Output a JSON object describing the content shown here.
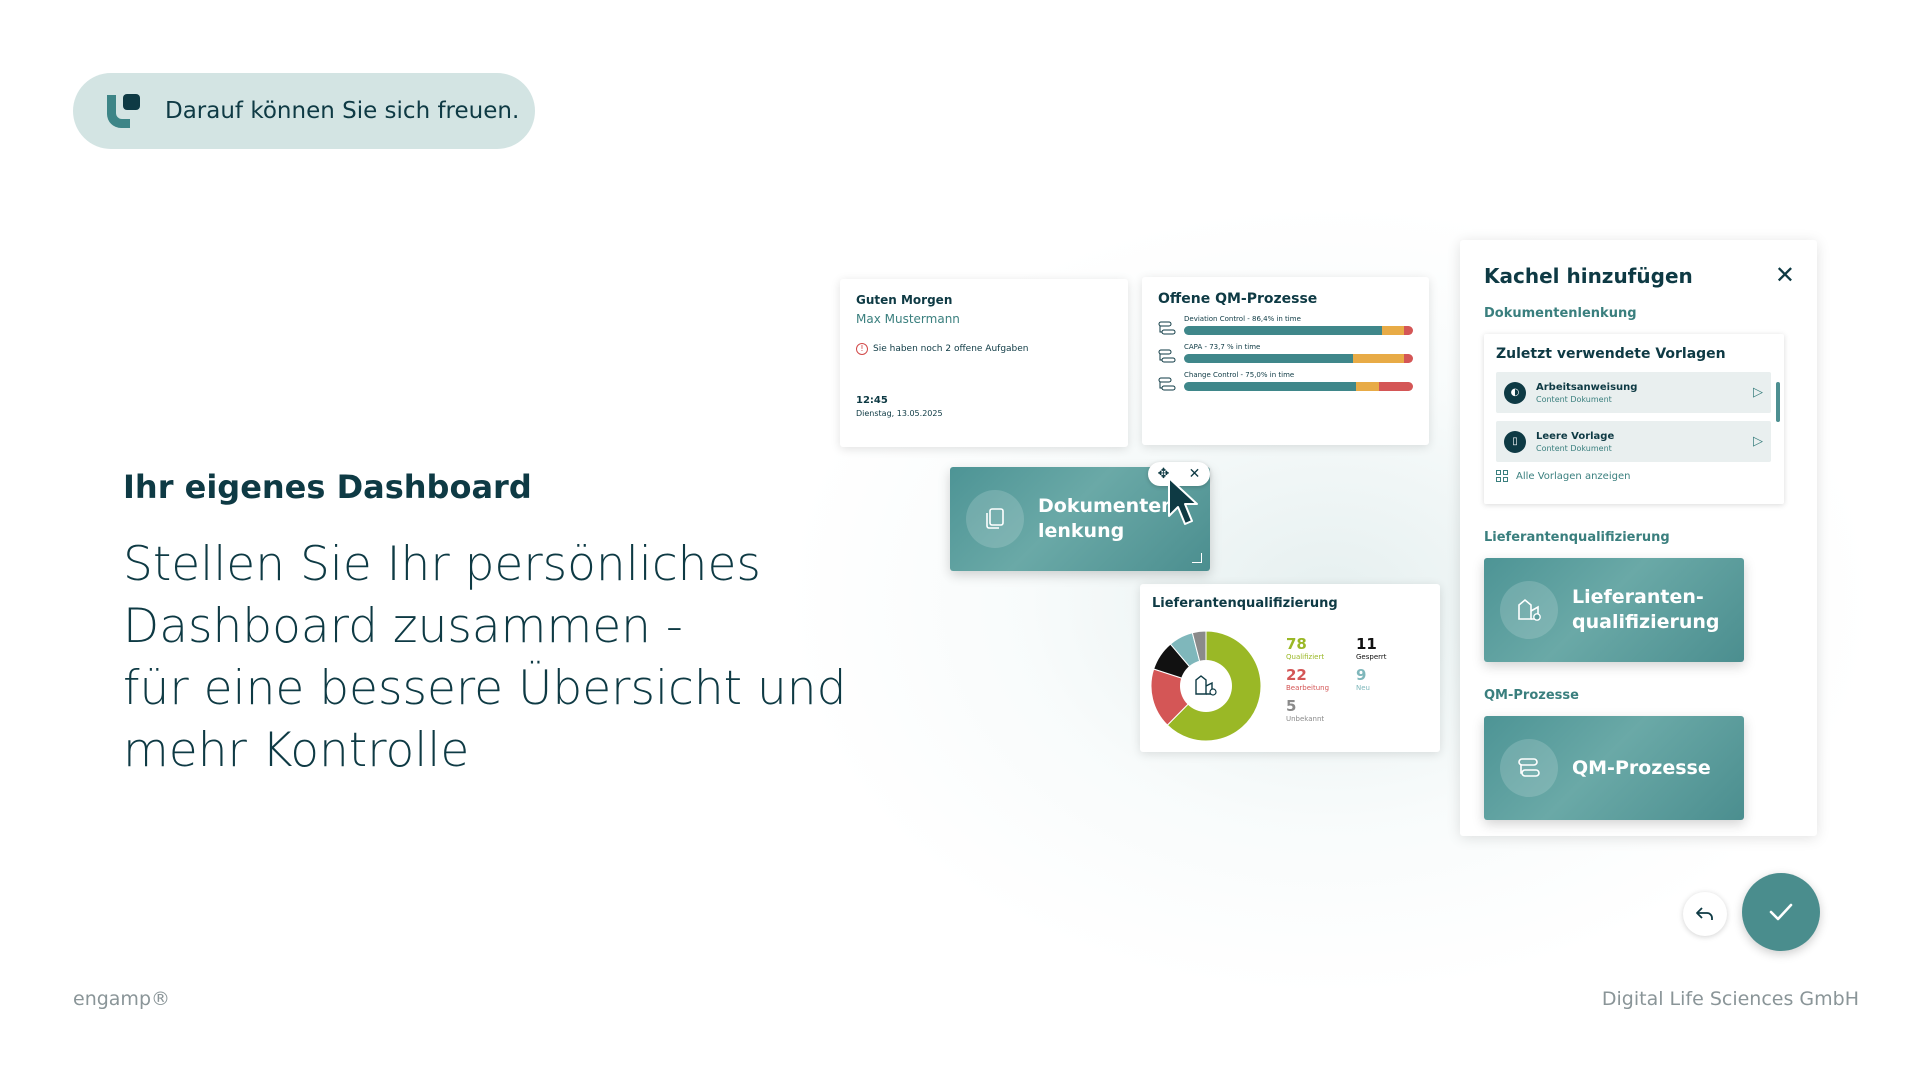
{
  "badge": {
    "text": "Darauf können Sie sich freuen.",
    "icon": "engamp-logo-icon"
  },
  "intro": {
    "subtitle": "Ihr eigenes Dashboard",
    "headline_lines": [
      "Stellen Sie Ihr persönliches",
      "Dashboard zusammen -",
      "für eine bessere Übersicht und",
      "mehr Kontrolle"
    ]
  },
  "footer": {
    "left": "engamp®",
    "right": "Digital Life Sciences GmbH"
  },
  "greeting_card": {
    "title": "Guten Morgen",
    "name": "Max Mustermann",
    "alert": "Sie haben noch 2 offene Aufgaben",
    "time": "12:45",
    "date": "Dienstag, 13.05.2025"
  },
  "qm_card": {
    "title": "Offene QM-Prozesse",
    "rows": [
      {
        "label": "Deviation Control - 86,4% in time",
        "in_time": 86.4,
        "warn": 9.6,
        "late": 4.0
      },
      {
        "label": "CAPA - 73,7 % in time",
        "in_time": 73.7,
        "warn": 22.3,
        "late": 4.0
      },
      {
        "label": "Change Control - 75,0% in time",
        "in_time": 75.0,
        "warn": 10.0,
        "late": 15.0
      }
    ],
    "colors": {
      "in_time": "#3f878a",
      "warn": "#e8ab46",
      "late": "#d45656"
    }
  },
  "drag_tile": {
    "label_line1": "Dokumenten-",
    "label_line2": "lenkung",
    "icon": "documents-icon"
  },
  "supplier_card": {
    "title": "Lieferantenqualifizierung",
    "stats": [
      {
        "value": "78",
        "label": "Qualifiziert",
        "color": "#9ab826"
      },
      {
        "value": "11",
        "label": "Gesperrt",
        "color": "#111111"
      },
      {
        "value": "22",
        "label": "Bearbeitung",
        "color": "#d45656"
      },
      {
        "value": "9",
        "label": "Neu",
        "color": "#7fb7bb"
      },
      {
        "value": "5",
        "label": "Unbekannt",
        "color": "#8a8a8a"
      }
    ]
  },
  "panel": {
    "title": "Kachel hinzufügen",
    "section1": "Dokumentenlenkung",
    "recent_title": "Zuletzt verwendete Vorlagen",
    "templates": [
      {
        "name": "Arbeitsanweisung",
        "type": "Content Dokument"
      },
      {
        "name": "Leere Vorlage",
        "type": "Content Dokument"
      }
    ],
    "all_link": "Alle Vorlagen anzeigen",
    "section2": "Lieferantenqualifizierung",
    "tile2_line1": "Lieferanten-",
    "tile2_line2": "qualifizierung",
    "section3": "QM-Prozesse",
    "tile3": "QM-Prozesse"
  }
}
